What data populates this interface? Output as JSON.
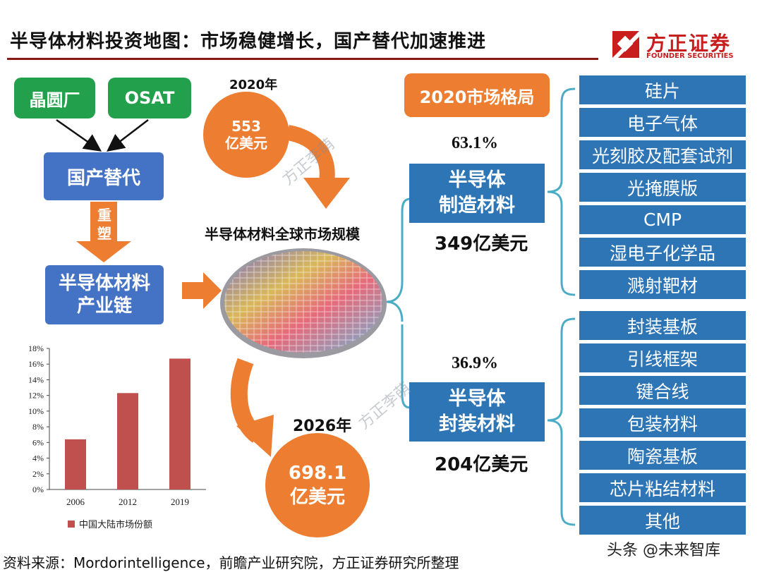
{
  "title": "半导体材料投资地图：市场稳健增长，国产替代加速推进",
  "logo": {
    "cn": "方正证券",
    "en": "FOUNDER SECURITIES"
  },
  "left_flow": {
    "wafer_fab": "晶圆厂",
    "osat": "OSAT",
    "domestic_sub": "国产替代",
    "reshape_line1": "重",
    "reshape_line2": "塑",
    "chain_line1": "半导体材料",
    "chain_line2": "产业链"
  },
  "market": {
    "year_2020": "2020年",
    "size_2020_value": "553",
    "size_2020_unit": "亿美元",
    "global_label": "半导体材料全球市场规模",
    "year_2026": "2026年",
    "size_2026_value": "698.1",
    "size_2026_unit": "亿美元"
  },
  "structure": {
    "header": "2020市场格局",
    "manufacturing": {
      "share": "63.1%",
      "line1": "半导体",
      "line2": "制造材料",
      "value": "349亿美元",
      "items": [
        "硅片",
        "电子气体",
        "光刻胶及配套试剂",
        "光掩膜版",
        "CMP",
        "湿电子化学品",
        "溅射靶材"
      ]
    },
    "packaging": {
      "share": "36.9%",
      "line1": "半导体",
      "line2": "封装材料",
      "value": "204亿美元",
      "items": [
        "封装基板",
        "引线框架",
        "键合线",
        "包装材料",
        "陶瓷基板",
        "芯片粘结材料",
        "其他"
      ]
    }
  },
  "watermark": "方正李萌",
  "chart_data": {
    "type": "bar",
    "categories": [
      "2006",
      "2012",
      "2019"
    ],
    "series": [
      {
        "name": "中国大陆市场份额",
        "values": [
          6.4,
          12.3,
          16.7
        ]
      }
    ],
    "ylim": [
      0,
      18
    ],
    "yticks": [
      "0%",
      "2%",
      "4%",
      "6%",
      "8%",
      "10%",
      "12%",
      "14%",
      "16%",
      "18%"
    ],
    "color": "#c0504d",
    "grid": false,
    "legend": "bottom"
  },
  "source": "资料来源：Mordorintelligence，前瞻产业研究院，方正证券研究所整理",
  "credit": "头条 @未来智库"
}
